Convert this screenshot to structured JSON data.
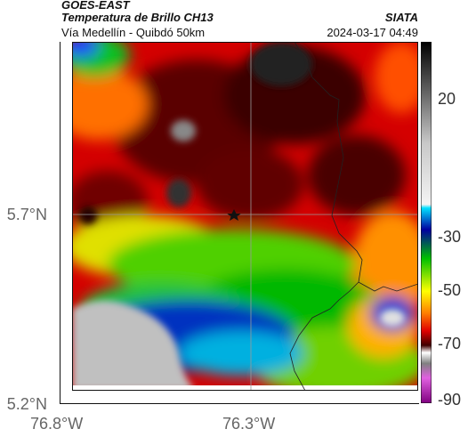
{
  "header": {
    "satellite": "GOES-EAST",
    "product": "Temperatura de Brillo CH13",
    "agency": "SIATA",
    "route": "Vía Medellín - Quibdó 50km",
    "datetime": "2024-03-17 04:49"
  },
  "map": {
    "x_ticks": [
      "76.8°W",
      "76.3°W"
    ],
    "y_ticks": [
      "5.7°N",
      "5.2°N"
    ],
    "marker": "point-marker"
  },
  "colorbar": {
    "ticks": [
      "20",
      "-30",
      "-50",
      "-70",
      "-90"
    ],
    "colors": {
      "warm_top": "#000000",
      "gray": "#c8c8c8",
      "cyan": "#00e0ff",
      "blue": "#0000a0",
      "green": "#00c000",
      "yellow": "#ffff00",
      "orange": "#ff8000",
      "red": "#e00000",
      "dark_red": "#400000",
      "magenta": "#c020c0"
    }
  }
}
